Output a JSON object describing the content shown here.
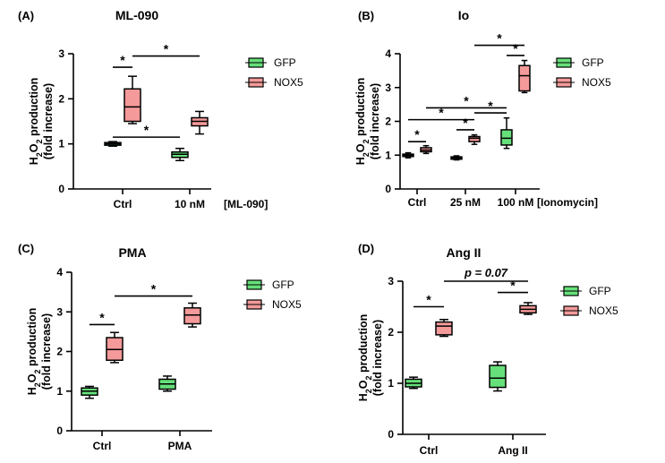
{
  "colors": {
    "gfp": "#66e07a",
    "nox5": "#f59a9a",
    "stroke": "#000000"
  },
  "chart_data": [
    {
      "type": "boxplot",
      "panel_label": "(A)",
      "title": "ML-090",
      "ylabel_line1": "H2O2 production",
      "ylabel_line2": "(fold increase)",
      "ylim": [
        0,
        3
      ],
      "yticks": [
        "0",
        "1",
        "2",
        "3"
      ],
      "categories": [
        "Ctrl",
        "10 nM"
      ],
      "treatment_label": "[ML-090]",
      "legend": [
        "GFP",
        "NOX5"
      ],
      "series": [
        {
          "name": "GFP",
          "boxes": [
            {
              "category": "Ctrl",
              "min": 0.95,
              "q1": 0.97,
              "median": 1.0,
              "q3": 1.03,
              "max": 1.05
            },
            {
              "category": "10 nM",
              "min": 0.63,
              "q1": 0.7,
              "median": 0.77,
              "q3": 0.82,
              "max": 0.9
            }
          ]
        },
        {
          "name": "NOX5",
          "boxes": [
            {
              "category": "Ctrl",
              "min": 1.45,
              "q1": 1.5,
              "median": 1.82,
              "q3": 2.22,
              "max": 2.5
            },
            {
              "category": "10 nM",
              "min": 1.22,
              "q1": 1.4,
              "median": 1.5,
              "q3": 1.58,
              "max": 1.72
            }
          ]
        }
      ],
      "annotations": [
        {
          "text": "*",
          "from": [
            "Ctrl",
            "GFP"
          ],
          "to": [
            "Ctrl",
            "NOX5"
          ],
          "y": 2.7
        },
        {
          "text": "*",
          "from": [
            "Ctrl",
            "NOX5"
          ],
          "to": [
            "10 nM",
            "NOX5"
          ],
          "y": 2.95
        },
        {
          "text": "*",
          "from": [
            "Ctrl",
            "GFP"
          ],
          "to": [
            "10 nM",
            "GFP"
          ],
          "y": 1.15
        }
      ]
    },
    {
      "type": "boxplot",
      "panel_label": "(B)",
      "title": "Io",
      "ylabel_line1": "H2O2 production",
      "ylabel_line2": "(fold increase)",
      "ylim": [
        0,
        4
      ],
      "yticks": [
        "0",
        "1",
        "2",
        "3",
        "4"
      ],
      "categories": [
        "Ctrl",
        "25 nM",
        "100 nM"
      ],
      "treatment_label": "[Ionomycin]",
      "legend": [
        "GFP",
        "NOX5"
      ],
      "series": [
        {
          "name": "GFP",
          "boxes": [
            {
              "category": "Ctrl",
              "min": 0.92,
              "q1": 0.96,
              "median": 1.0,
              "q3": 1.03,
              "max": 1.07
            },
            {
              "category": "25 nM",
              "min": 0.86,
              "q1": 0.88,
              "median": 0.92,
              "q3": 0.95,
              "max": 0.98
            },
            {
              "category": "100 nM",
              "min": 1.2,
              "q1": 1.3,
              "median": 1.5,
              "q3": 1.75,
              "max": 2.1
            }
          ]
        },
        {
          "name": "NOX5",
          "boxes": [
            {
              "category": "Ctrl",
              "min": 1.05,
              "q1": 1.1,
              "median": 1.15,
              "q3": 1.22,
              "max": 1.28
            },
            {
              "category": "25 nM",
              "min": 1.32,
              "q1": 1.4,
              "median": 1.5,
              "q3": 1.55,
              "max": 1.6
            },
            {
              "category": "100 nM",
              "min": 2.85,
              "q1": 2.9,
              "median": 3.35,
              "q3": 3.65,
              "max": 3.8
            }
          ]
        }
      ],
      "annotations": [
        {
          "text": "*",
          "from": [
            "Ctrl",
            "GFP"
          ],
          "to": [
            "Ctrl",
            "NOX5"
          ],
          "y": 1.4
        },
        {
          "text": "*",
          "from": [
            "Ctrl",
            "GFP"
          ],
          "to": [
            "25 nM",
            "NOX5"
          ],
          "y": 2.05
        },
        {
          "text": "*",
          "from": [
            "Ctrl",
            "NOX5"
          ],
          "to": [
            "100 nM",
            "GFP"
          ],
          "y": 2.4
        },
        {
          "text": "*",
          "from": [
            "25 nM",
            "GFP"
          ],
          "to": [
            "25 nM",
            "NOX5"
          ],
          "y": 1.75
        },
        {
          "text": "*",
          "from": [
            "25 nM",
            "NOX5"
          ],
          "to": [
            "100 nM",
            "GFP"
          ],
          "y": 2.25
        },
        {
          "text": "*",
          "from": [
            "100 nM",
            "GFP"
          ],
          "to": [
            "100 nM",
            "NOX5"
          ],
          "y": 3.95
        },
        {
          "text": "*",
          "from": [
            "25 nM",
            "NOX5"
          ],
          "to": [
            "100 nM",
            "NOX5"
          ],
          "y": 4.25
        }
      ]
    },
    {
      "type": "boxplot",
      "panel_label": "(C)",
      "title": "PMA",
      "ylabel_line1": "H2O2 production",
      "ylabel_line2": "(fold increase)",
      "ylim": [
        0,
        4
      ],
      "yticks": [
        "0",
        "1",
        "2",
        "3",
        "4"
      ],
      "categories": [
        "Ctrl",
        "PMA"
      ],
      "treatment_label": "",
      "legend": [
        "GFP",
        "NOX5"
      ],
      "series": [
        {
          "name": "GFP",
          "boxes": [
            {
              "category": "Ctrl",
              "min": 0.82,
              "q1": 0.9,
              "median": 1.0,
              "q3": 1.08,
              "max": 1.12
            },
            {
              "category": "PMA",
              "min": 1.0,
              "q1": 1.05,
              "median": 1.18,
              "q3": 1.3,
              "max": 1.38
            }
          ]
        },
        {
          "name": "NOX5",
          "boxes": [
            {
              "category": "Ctrl",
              "min": 1.72,
              "q1": 1.78,
              "median": 2.05,
              "q3": 2.35,
              "max": 2.48
            },
            {
              "category": "PMA",
              "min": 2.62,
              "q1": 2.7,
              "median": 2.92,
              "q3": 3.1,
              "max": 3.22
            }
          ]
        }
      ],
      "annotations": [
        {
          "text": "*",
          "from": [
            "Ctrl",
            "GFP"
          ],
          "to": [
            "Ctrl",
            "NOX5"
          ],
          "y": 2.68
        },
        {
          "text": "*",
          "from": [
            "Ctrl",
            "NOX5"
          ],
          "to": [
            "PMA",
            "NOX5"
          ],
          "y": 3.4
        }
      ]
    },
    {
      "type": "boxplot",
      "panel_label": "(D)",
      "title": "Ang II",
      "ylabel_line1": "H2O2 production",
      "ylabel_line2": "(fold increase)",
      "ylim": [
        0,
        3
      ],
      "yticks": [
        "0",
        "1",
        "2",
        "3"
      ],
      "categories": [
        "Ctrl",
        "Ang II"
      ],
      "treatment_label": "",
      "legend": [
        "GFP",
        "NOX5"
      ],
      "series": [
        {
          "name": "GFP",
          "boxes": [
            {
              "category": "Ctrl",
              "min": 0.9,
              "q1": 0.93,
              "median": 1.0,
              "q3": 1.08,
              "max": 1.12
            },
            {
              "category": "Ang II",
              "min": 0.85,
              "q1": 0.92,
              "median": 1.1,
              "q3": 1.35,
              "max": 1.42
            }
          ]
        },
        {
          "name": "NOX5",
          "boxes": [
            {
              "category": "Ctrl",
              "min": 1.92,
              "q1": 1.95,
              "median": 2.12,
              "q3": 2.2,
              "max": 2.25
            },
            {
              "category": "Ang II",
              "min": 2.35,
              "q1": 2.38,
              "median": 2.45,
              "q3": 2.52,
              "max": 2.58
            }
          ]
        }
      ],
      "annotations": [
        {
          "text": "*",
          "from": [
            "Ctrl",
            "GFP"
          ],
          "to": [
            "Ctrl",
            "NOX5"
          ],
          "y": 2.5
        },
        {
          "text": "*",
          "from": [
            "Ang II",
            "GFP"
          ],
          "to": [
            "Ang II",
            "NOX5"
          ],
          "y": 2.78
        },
        {
          "text": "p = 0.07",
          "from": [
            "Ctrl",
            "NOX5"
          ],
          "to": [
            "Ang II",
            "NOX5"
          ],
          "y": 3.0,
          "italic": true
        }
      ]
    }
  ]
}
